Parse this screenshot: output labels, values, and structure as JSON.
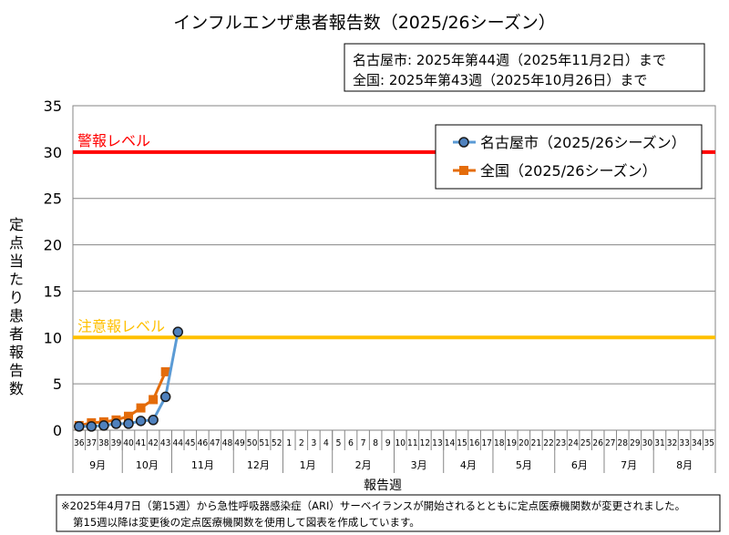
{
  "chart_data": {
    "type": "line",
    "title": "インフルエンザ患者報告数（2025/26シーズン）",
    "info_lines": [
      "名古屋市: 2025年第44週（2025年11月2日）まで",
      "全国: 2025年第43週（2025年10月26日）まで"
    ],
    "xlabel": "報告週",
    "ylabel": "定点当たり患者報告数",
    "ylim": [
      0,
      35
    ],
    "yticks": [
      0,
      5,
      10,
      15,
      20,
      25,
      30,
      35
    ],
    "grid": true,
    "legend_position": "top-right",
    "weeks": [
      "36",
      "37",
      "38",
      "39",
      "40",
      "41",
      "42",
      "43",
      "44",
      "45",
      "46",
      "47",
      "48",
      "49",
      "50",
      "51",
      "52",
      "1",
      "2",
      "3",
      "4",
      "5",
      "6",
      "7",
      "8",
      "9",
      "10",
      "11",
      "12",
      "13",
      "14",
      "15",
      "16",
      "17",
      "18",
      "19",
      "20",
      "21",
      "22",
      "23",
      "24",
      "25",
      "26",
      "27",
      "28",
      "29",
      "30",
      "31",
      "32",
      "33",
      "34",
      "35"
    ],
    "months": [
      {
        "label": "9月",
        "span": 4
      },
      {
        "label": "10月",
        "span": 4
      },
      {
        "label": "11月",
        "span": 5
      },
      {
        "label": "12月",
        "span": 4
      },
      {
        "label": "1月",
        "span": 4
      },
      {
        "label": "2月",
        "span": 5
      },
      {
        "label": "3月",
        "span": 4
      },
      {
        "label": "4月",
        "span": 4
      },
      {
        "label": "5月",
        "span": 5
      },
      {
        "label": "6月",
        "span": 4
      },
      {
        "label": "7月",
        "span": 4
      },
      {
        "label": "8月",
        "span": 5
      }
    ],
    "series": [
      {
        "name": "名古屋市（2025/26シーズン）",
        "color": "#5B9BD5",
        "marker": "circle",
        "marker_fill": "#4F81BD",
        "values": [
          0.4,
          0.4,
          0.5,
          0.7,
          0.7,
          1.0,
          1.1,
          3.6,
          10.6
        ]
      },
      {
        "name": "全国（2025/26シーズン）",
        "color": "#E46C0A",
        "marker": "square",
        "values": [
          0.5,
          0.8,
          0.9,
          1.1,
          1.5,
          2.4,
          3.3,
          6.3
        ]
      }
    ],
    "thresholds": [
      {
        "label": "警報レベル",
        "value": 30,
        "color": "#FF0000"
      },
      {
        "label": "注意報レベル",
        "value": 10,
        "color": "#FFC000"
      }
    ],
    "footnote": [
      "※2025年4月7日（第15週）から急性呼吸器感染症（ARI）サーベイランスが開始されるとともに定点医療機関数が変更されました。",
      "第15週以降は変更後の定点医療機関数を使用して図表を作成しています。"
    ]
  }
}
